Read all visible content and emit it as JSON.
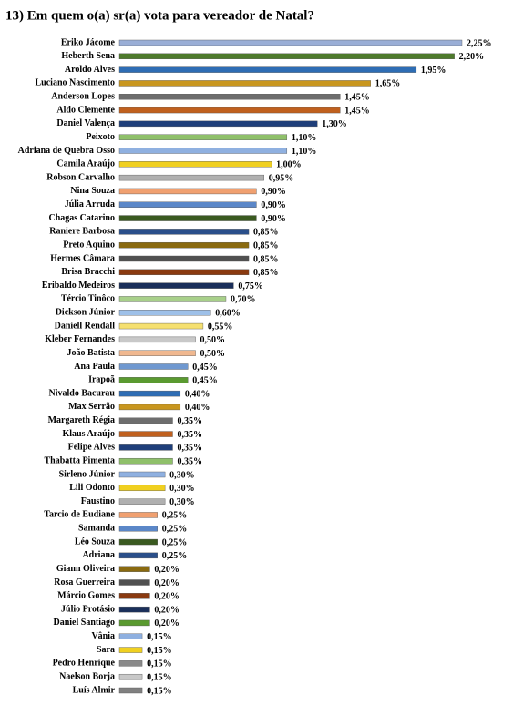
{
  "chart_data": {
    "type": "hbar",
    "title": "13) Em quem o(a) sr(a) vota para vereador de Natal?",
    "categories": [
      "Eriko Jácome",
      "Heberth Sena",
      "Aroldo Alves",
      "Luciano Nascimento",
      "Anderson Lopes",
      "Aldo Clemente",
      "Daniel Valença",
      "Peixoto",
      "Adriana de Quebra Osso",
      "Camila Araújo",
      "Robson Carvalho",
      "Nina Souza",
      "Júlia Arruda",
      "Chagas Catarino",
      "Raniere Barbosa",
      "Preto Aquino",
      "Hermes Câmara",
      "Brisa Bracchi",
      "Eribaldo Medeiros",
      "Tércio Tinôco",
      "Dickson Júnior",
      "Daniell Rendall",
      "Kleber Fernandes",
      "João Batista",
      "Ana Paula",
      "Irapoã",
      "Nivaldo Bacurau",
      "Max Serrão",
      "Margareth Régia",
      "Klaus Araújo",
      "Felipe Alves",
      "Thabatta Pimenta",
      "Sirleno Júnior",
      "Lili Odonto",
      "Faustino",
      "Tarcio de Eudiane",
      "Samanda",
      "Léo Souza",
      "Adriana",
      "Giann Oliveira",
      "Rosa Guerreira",
      "Márcio Gomes",
      "Júlio Protásio",
      "Daniel Santiago",
      "Vânia",
      "Sara",
      "Pedro Henrique",
      "Naelson Borja",
      "Luís Almir"
    ],
    "values": [
      2.25,
      2.2,
      1.95,
      1.65,
      1.45,
      1.45,
      1.3,
      1.1,
      1.1,
      1.0,
      0.95,
      0.9,
      0.9,
      0.9,
      0.85,
      0.85,
      0.85,
      0.85,
      0.75,
      0.7,
      0.6,
      0.55,
      0.5,
      0.5,
      0.45,
      0.45,
      0.4,
      0.4,
      0.35,
      0.35,
      0.35,
      0.35,
      0.3,
      0.3,
      0.3,
      0.25,
      0.25,
      0.25,
      0.25,
      0.2,
      0.2,
      0.2,
      0.2,
      0.2,
      0.15,
      0.15,
      0.15,
      0.15,
      0.15
    ],
    "value_labels": [
      "2,25%",
      "2,20%",
      "1,95%",
      "1,65%",
      "1,45%",
      "1,45%",
      "1,30%",
      "1,10%",
      "1,10%",
      "1,00%",
      "0,95%",
      "0,90%",
      "0,90%",
      "0,90%",
      "0,85%",
      "0,85%",
      "0,85%",
      "0,85%",
      "0,75%",
      "0,70%",
      "0,60%",
      "0,55%",
      "0,50%",
      "0,50%",
      "0,45%",
      "0,45%",
      "0,40%",
      "0,40%",
      "0,35%",
      "0,35%",
      "0,35%",
      "0,35%",
      "0,30%",
      "0,30%",
      "0,30%",
      "0,25%",
      "0,25%",
      "0,25%",
      "0,25%",
      "0,20%",
      "0,20%",
      "0,20%",
      "0,20%",
      "0,20%",
      "0,15%",
      "0,15%",
      "0,15%",
      "0,15%",
      "0,15%"
    ],
    "colors": [
      "#9aaed6",
      "#4e7a2c",
      "#2e6db4",
      "#c8961e",
      "#6d6d6d",
      "#c0601e",
      "#1f3f7a",
      "#8fc06a",
      "#8fb0e0",
      "#f0d020",
      "#b0b0b0",
      "#f0a070",
      "#5b87c8",
      "#3a5a20",
      "#2a4f8a",
      "#8a6a10",
      "#505050",
      "#8a3a10",
      "#1a2f5a",
      "#a8d08a",
      "#9ec0e8",
      "#f5e070",
      "#c8c8c8",
      "#f0b890",
      "#6f98d0",
      "#5a9a30",
      "#2e6db4",
      "#c8961e",
      "#6d6d6d",
      "#c0601e",
      "#1f3f7a",
      "#8fc06a",
      "#8fb0e0",
      "#f0d020",
      "#b0b0b0",
      "#f0a070",
      "#5b87c8",
      "#3a5a20",
      "#2a4f8a",
      "#8a6a10",
      "#505050",
      "#8a3a10",
      "#1a2f5a",
      "#5a9a30",
      "#8fb0e0",
      "#f0d020",
      "#8a8a8a",
      "#c8c8c8",
      "#808080"
    ]
  }
}
